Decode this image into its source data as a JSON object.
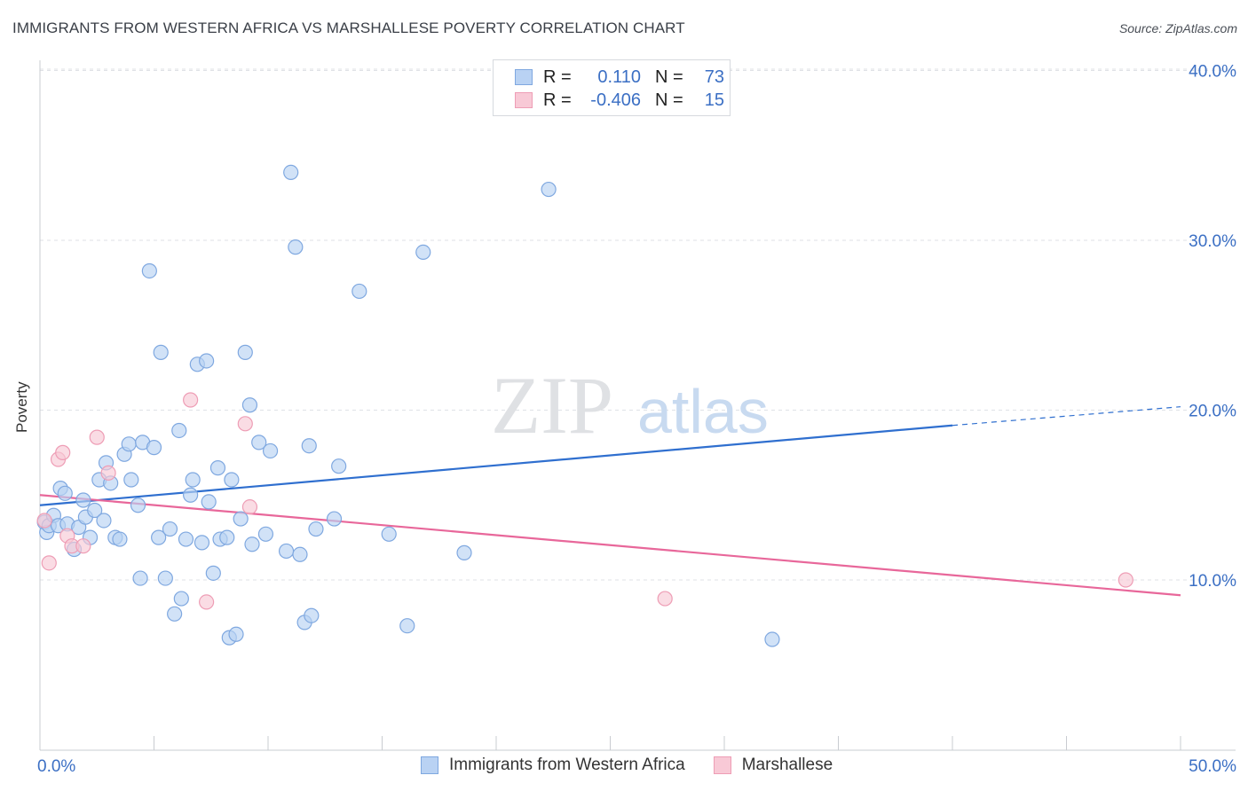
{
  "title": "IMMIGRANTS FROM WESTERN AFRICA VS MARSHALLESE POVERTY CORRELATION CHART",
  "source": "Source: ZipAtlas.com",
  "watermark": {
    "zip": "ZIP",
    "atlas": "atlas"
  },
  "legend_top": [
    {
      "r_label": "R =",
      "r_value": "0.110",
      "n_label": "N =",
      "n_value": "73"
    },
    {
      "r_label": "R =",
      "r_value": "-0.406",
      "n_label": "N =",
      "n_value": "15"
    }
  ],
  "legend_bottom": [
    "Immigrants from Western Africa",
    "Marshallese"
  ],
  "colors": {
    "blue_fill": "#b9d2f3",
    "blue_stroke": "#7fa8e0",
    "blue_line": "#2f6fcf",
    "pink_fill": "#f8c9d6",
    "pink_stroke": "#ee9db5",
    "pink_line": "#e8679a",
    "tick_text": "#3b6fc4",
    "grid": "#dfe2e6"
  },
  "chart_data": {
    "type": "scatter",
    "title": "IMMIGRANTS FROM WESTERN AFRICA VS MARSHALLESE POVERTY CORRELATION CHART",
    "xlabel": "",
    "ylabel": "Poverty",
    "xlim": [
      0,
      50
    ],
    "ylim": [
      0,
      42
    ],
    "x_tick_labels": [
      "0.0%",
      "50.0%"
    ],
    "y_ticks": [
      10,
      20,
      30,
      40
    ],
    "y_tick_labels": [
      "10.0%",
      "20.0%",
      "30.0%",
      "40.0%"
    ],
    "grid": "horizontal dashed",
    "legend_placement": "top-center",
    "series": [
      {
        "name": "Immigrants from Western Africa",
        "r": 0.11,
        "n": 73,
        "trend": {
          "x0": 0,
          "y0": 14.4,
          "x1": 40,
          "y1": 19.1,
          "dashed_to_x": 50,
          "dashed_to_y": 20.2
        },
        "points": [
          [
            0.2,
            13.4
          ],
          [
            0.3,
            12.8
          ],
          [
            0.4,
            13.2
          ],
          [
            0.6,
            13.8
          ],
          [
            0.8,
            13.2
          ],
          [
            0.9,
            15.4
          ],
          [
            1.1,
            15.1
          ],
          [
            1.2,
            13.3
          ],
          [
            1.5,
            11.8
          ],
          [
            1.7,
            13.1
          ],
          [
            1.9,
            14.7
          ],
          [
            2.0,
            13.7
          ],
          [
            2.2,
            12.5
          ],
          [
            2.4,
            14.1
          ],
          [
            2.6,
            15.9
          ],
          [
            2.8,
            13.5
          ],
          [
            2.9,
            16.9
          ],
          [
            3.1,
            15.7
          ],
          [
            3.3,
            12.5
          ],
          [
            3.5,
            12.4
          ],
          [
            3.7,
            17.4
          ],
          [
            3.9,
            18.0
          ],
          [
            4.0,
            15.9
          ],
          [
            4.3,
            14.4
          ],
          [
            4.4,
            10.1
          ],
          [
            4.5,
            18.1
          ],
          [
            4.8,
            28.2
          ],
          [
            5.0,
            17.8
          ],
          [
            5.2,
            12.5
          ],
          [
            5.3,
            23.4
          ],
          [
            5.5,
            10.1
          ],
          [
            5.7,
            13.0
          ],
          [
            5.9,
            8.0
          ],
          [
            6.1,
            18.8
          ],
          [
            6.2,
            8.9
          ],
          [
            6.4,
            12.4
          ],
          [
            6.6,
            15.0
          ],
          [
            6.7,
            15.9
          ],
          [
            6.9,
            22.7
          ],
          [
            7.1,
            12.2
          ],
          [
            7.3,
            22.9
          ],
          [
            7.4,
            14.6
          ],
          [
            7.6,
            10.4
          ],
          [
            7.8,
            16.6
          ],
          [
            7.9,
            12.4
          ],
          [
            8.2,
            12.5
          ],
          [
            8.3,
            6.6
          ],
          [
            8.4,
            15.9
          ],
          [
            8.6,
            6.8
          ],
          [
            8.8,
            13.6
          ],
          [
            9.0,
            23.4
          ],
          [
            9.2,
            20.3
          ],
          [
            9.3,
            12.1
          ],
          [
            9.6,
            18.1
          ],
          [
            9.9,
            12.7
          ],
          [
            10.1,
            17.6
          ],
          [
            10.8,
            11.7
          ],
          [
            11.0,
            34.0
          ],
          [
            11.2,
            29.6
          ],
          [
            11.4,
            11.5
          ],
          [
            11.6,
            7.5
          ],
          [
            11.8,
            17.9
          ],
          [
            11.9,
            7.9
          ],
          [
            12.1,
            13.0
          ],
          [
            12.9,
            13.6
          ],
          [
            13.1,
            16.7
          ],
          [
            14.0,
            27.0
          ],
          [
            15.3,
            12.7
          ],
          [
            16.1,
            7.3
          ],
          [
            16.8,
            29.3
          ],
          [
            18.6,
            11.6
          ],
          [
            22.3,
            33.0
          ],
          [
            32.1,
            6.5
          ]
        ]
      },
      {
        "name": "Marshallese",
        "r": -0.406,
        "n": 15,
        "trend": {
          "x0": 0,
          "y0": 15.0,
          "x1": 50,
          "y1": 9.1
        },
        "points": [
          [
            0.2,
            13.5
          ],
          [
            0.4,
            11.0
          ],
          [
            0.8,
            17.1
          ],
          [
            1.0,
            17.5
          ],
          [
            1.2,
            12.6
          ],
          [
            1.4,
            12.0
          ],
          [
            1.9,
            12.0
          ],
          [
            2.5,
            18.4
          ],
          [
            3.0,
            16.3
          ],
          [
            6.6,
            20.6
          ],
          [
            7.3,
            8.7
          ],
          [
            9.0,
            19.2
          ],
          [
            9.2,
            14.3
          ],
          [
            27.4,
            8.9
          ],
          [
            47.6,
            10.0
          ]
        ]
      }
    ]
  }
}
